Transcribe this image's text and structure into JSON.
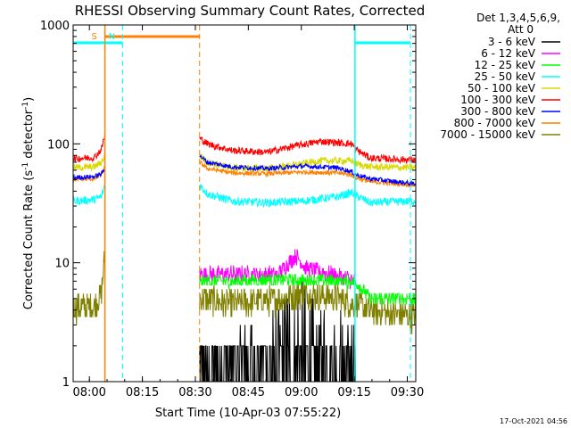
{
  "chart_data": {
    "type": "line",
    "title": "RHESSI Observing Summary Count Rates, Corrected",
    "xlabel": "Start Time (10-Apr-03 07:55:22)",
    "ylabel_main": "Corrected Count Rate (s",
    "ylabel_sup1": "-1",
    "ylabel_mid": " detector",
    "ylabel_sup2": "-1",
    "ylabel_end": ")",
    "yscale": "log",
    "ylim": [
      1,
      1000
    ],
    "xlim_minutes": [
      0,
      97
    ],
    "x_ticks": [
      {
        "label": "08:00",
        "minute": 4.6
      },
      {
        "label": "08:15",
        "minute": 19.6
      },
      {
        "label": "08:30",
        "minute": 34.6
      },
      {
        "label": "08:45",
        "minute": 49.6
      },
      {
        "label": "09:00",
        "minute": 64.6
      },
      {
        "label": "09:15",
        "minute": 79.6
      },
      {
        "label": "09:30",
        "minute": 94.6
      }
    ],
    "y_ticks": [
      {
        "label": "1",
        "value": 1
      },
      {
        "label": "10",
        "value": 10
      },
      {
        "label": "100",
        "value": 100
      },
      {
        "label": "1000",
        "value": 1000
      }
    ],
    "legend_header": [
      "Det 1,3,4,5,6,9,",
      "Att 0"
    ],
    "series": [
      {
        "name": "3 - 6 keV",
        "color": "#000000"
      },
      {
        "name": "6 - 12 keV",
        "color": "#ff00ff"
      },
      {
        "name": "12 - 25 keV",
        "color": "#00ff00"
      },
      {
        "name": "25 - 50 keV",
        "color": "#00ffff"
      },
      {
        "name": "50 - 100 keV",
        "color": "#d8d800"
      },
      {
        "name": "100 - 300 keV",
        "color": "#ff0000"
      },
      {
        "name": "300 - 800 keV",
        "color": "#0000ff"
      },
      {
        "name": "800 - 7000 keV",
        "color": "#ff8000"
      },
      {
        "name": "7000 - 15000 keV",
        "color": "#808000"
      }
    ],
    "segments": [
      {
        "start": 0,
        "end": 9.0
      },
      {
        "start": 35.8,
        "end": 97
      }
    ],
    "profiles": {
      "25 - 50 keV": [
        [
          0,
          33
        ],
        [
          6,
          34
        ],
        [
          8,
          36
        ],
        [
          9,
          46
        ],
        [
          35.8,
          45
        ],
        [
          38,
          38
        ],
        [
          45,
          33
        ],
        [
          55,
          32
        ],
        [
          65,
          33
        ],
        [
          75,
          36
        ],
        [
          79,
          39
        ],
        [
          80,
          37
        ],
        [
          84,
          32
        ],
        [
          97,
          33
        ]
      ],
      "50 - 100 keV": [
        [
          0,
          63
        ],
        [
          6,
          64
        ],
        [
          8,
          70
        ],
        [
          9,
          80
        ],
        [
          35.8,
          80
        ],
        [
          38,
          70
        ],
        [
          45,
          63
        ],
        [
          55,
          62
        ],
        [
          62,
          66
        ],
        [
          70,
          72
        ],
        [
          79,
          72
        ],
        [
          80,
          68
        ],
        [
          84,
          64
        ],
        [
          97,
          63
        ]
      ],
      "100 - 300 keV": [
        [
          0,
          75
        ],
        [
          6,
          77
        ],
        [
          8,
          90
        ],
        [
          9,
          120
        ],
        [
          35.8,
          112
        ],
        [
          38,
          100
        ],
        [
          45,
          88
        ],
        [
          55,
          85
        ],
        [
          62,
          95
        ],
        [
          70,
          105
        ],
        [
          79,
          100
        ],
        [
          80,
          90
        ],
        [
          84,
          76
        ],
        [
          97,
          73
        ]
      ],
      "300 - 800 keV": [
        [
          0,
          52
        ],
        [
          6,
          53
        ],
        [
          8,
          56
        ],
        [
          9,
          62
        ],
        [
          35.8,
          80
        ],
        [
          38,
          70
        ],
        [
          45,
          64
        ],
        [
          55,
          62
        ],
        [
          65,
          65
        ],
        [
          75,
          63
        ],
        [
          79,
          58
        ],
        [
          80,
          55
        ],
        [
          84,
          51
        ],
        [
          97,
          46
        ]
      ],
      "800 - 7000 keV": [
        [
          0,
          50
        ],
        [
          6,
          51
        ],
        [
          8,
          55
        ],
        [
          9,
          64
        ],
        [
          35.8,
          70
        ],
        [
          38,
          62
        ],
        [
          45,
          57
        ],
        [
          55,
          56
        ],
        [
          65,
          58
        ],
        [
          75,
          57
        ],
        [
          79,
          55
        ],
        [
          80,
          52
        ],
        [
          84,
          48
        ],
        [
          97,
          45
        ]
      ],
      "12 - 25 keV": [
        [
          35.8,
          7.0
        ],
        [
          45,
          7.0
        ],
        [
          60,
          7.2
        ],
        [
          70,
          7.1
        ],
        [
          80,
          6.9
        ],
        [
          84,
          5.0
        ],
        [
          97,
          5.0
        ]
      ],
      "6 - 12 keV": [
        [
          35.8,
          8.0
        ],
        [
          45,
          8.0
        ],
        [
          58,
          8.0
        ],
        [
          63,
          11.5
        ],
        [
          66,
          9.0
        ],
        [
          80,
          7.0
        ]
      ],
      "7000 - 15000 keV": [
        [
          0,
          4.2
        ],
        [
          6,
          4.3
        ],
        [
          8,
          5.5
        ],
        [
          9,
          12
        ],
        [
          35.8,
          5.0
        ],
        [
          45,
          4.5
        ],
        [
          60,
          5.0
        ],
        [
          65,
          5.6
        ],
        [
          75,
          5.0
        ],
        [
          84,
          4.0
        ],
        [
          97,
          3.5
        ]
      ],
      "3 - 6 keV": [
        [
          35.8,
          1.5
        ],
        [
          48,
          2.0
        ],
        [
          55,
          2.5
        ],
        [
          60,
          3.5
        ],
        [
          64,
          5.5
        ],
        [
          68,
          3.2
        ],
        [
          76,
          2.5
        ],
        [
          80,
          1.6
        ]
      ]
    },
    "attenuator_marks": [
      {
        "label": "S",
        "color": "#ff8000",
        "style": "solid",
        "minute": 9.0
      },
      {
        "label": "N",
        "color": "#00ffff",
        "style": "dashed",
        "minute": 14.0
      },
      {
        "label": "",
        "color": "#ff8000",
        "style": "dashed",
        "minute": 35.8
      },
      {
        "label": "",
        "color": "#00ffff",
        "style": "solid",
        "minute": 79.8
      },
      {
        "label": "",
        "color": "#00ffff",
        "style": "dashed",
        "minute": 95.5
      }
    ],
    "top_bars": [
      {
        "color": "#00ffff",
        "from": 0,
        "to": 14.0
      },
      {
        "color": "#ff8000",
        "from": 9.0,
        "to": 35.8
      },
      {
        "color": "#00ffff",
        "from": 79.8,
        "to": 95.5
      }
    ],
    "timestamp": "17-Oct-2021 04:56"
  }
}
